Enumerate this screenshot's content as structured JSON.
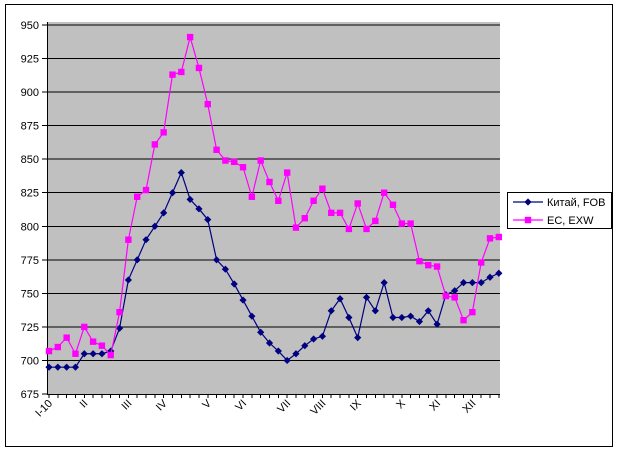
{
  "chart_data": {
    "type": "line",
    "title": "",
    "xlabel": "",
    "ylabel": "",
    "ylim": [
      675,
      950
    ],
    "ytick_step": 25,
    "yticks": [
      675,
      700,
      725,
      750,
      775,
      800,
      825,
      850,
      875,
      900,
      925,
      950
    ],
    "grid": "horizontal",
    "plot_bg_color": "#C0C0C0",
    "grid_color": "#000000",
    "frame_color": "#000000",
    "legend_position": "right",
    "x_unit": "weeks",
    "month_tick_labels": [
      {
        "label": "I-10",
        "index": 0
      },
      {
        "label": "II",
        "index": 4
      },
      {
        "label": "III",
        "index": 9
      },
      {
        "label": "IV",
        "index": 13
      },
      {
        "label": "V",
        "index": 18
      },
      {
        "label": "VI",
        "index": 22
      },
      {
        "label": "VII",
        "index": 27
      },
      {
        "label": "VIII",
        "index": 31
      },
      {
        "label": "IX",
        "index": 35
      },
      {
        "label": "X",
        "index": 40
      },
      {
        "label": "XI",
        "index": 44
      },
      {
        "label": "XII",
        "index": 48
      }
    ],
    "series": [
      {
        "name": "Китай, FOB",
        "color": "#000080",
        "marker": "diamond",
        "values": [
          695,
          695,
          695,
          695,
          705,
          705,
          705,
          707,
          724,
          760,
          775,
          790,
          800,
          810,
          825,
          840,
          820,
          813,
          805,
          775,
          768,
          757,
          745,
          733,
          721,
          713,
          707,
          700,
          705,
          711,
          716,
          718,
          737,
          746,
          732,
          717,
          747,
          737,
          758,
          732,
          732,
          733,
          729,
          737,
          727,
          749,
          752,
          758,
          758,
          758,
          762,
          765
        ]
      },
      {
        "name": "ЕС, EXW",
        "color": "#FF00FF",
        "marker": "square",
        "values": [
          707,
          710,
          717,
          705,
          725,
          714,
          711,
          704,
          736,
          790,
          822,
          827,
          861,
          870,
          913,
          915,
          941,
          918,
          891,
          857,
          849,
          848,
          844,
          822,
          849,
          833,
          819,
          840,
          799,
          806,
          819,
          828,
          810,
          810,
          798,
          817,
          798,
          804,
          825,
          816,
          802,
          802,
          774,
          771,
          770,
          748,
          747,
          730,
          736,
          773,
          791,
          792
        ]
      }
    ],
    "legend": {
      "entries": [
        "Китай, FOB",
        "ЕС, EXW"
      ]
    }
  }
}
